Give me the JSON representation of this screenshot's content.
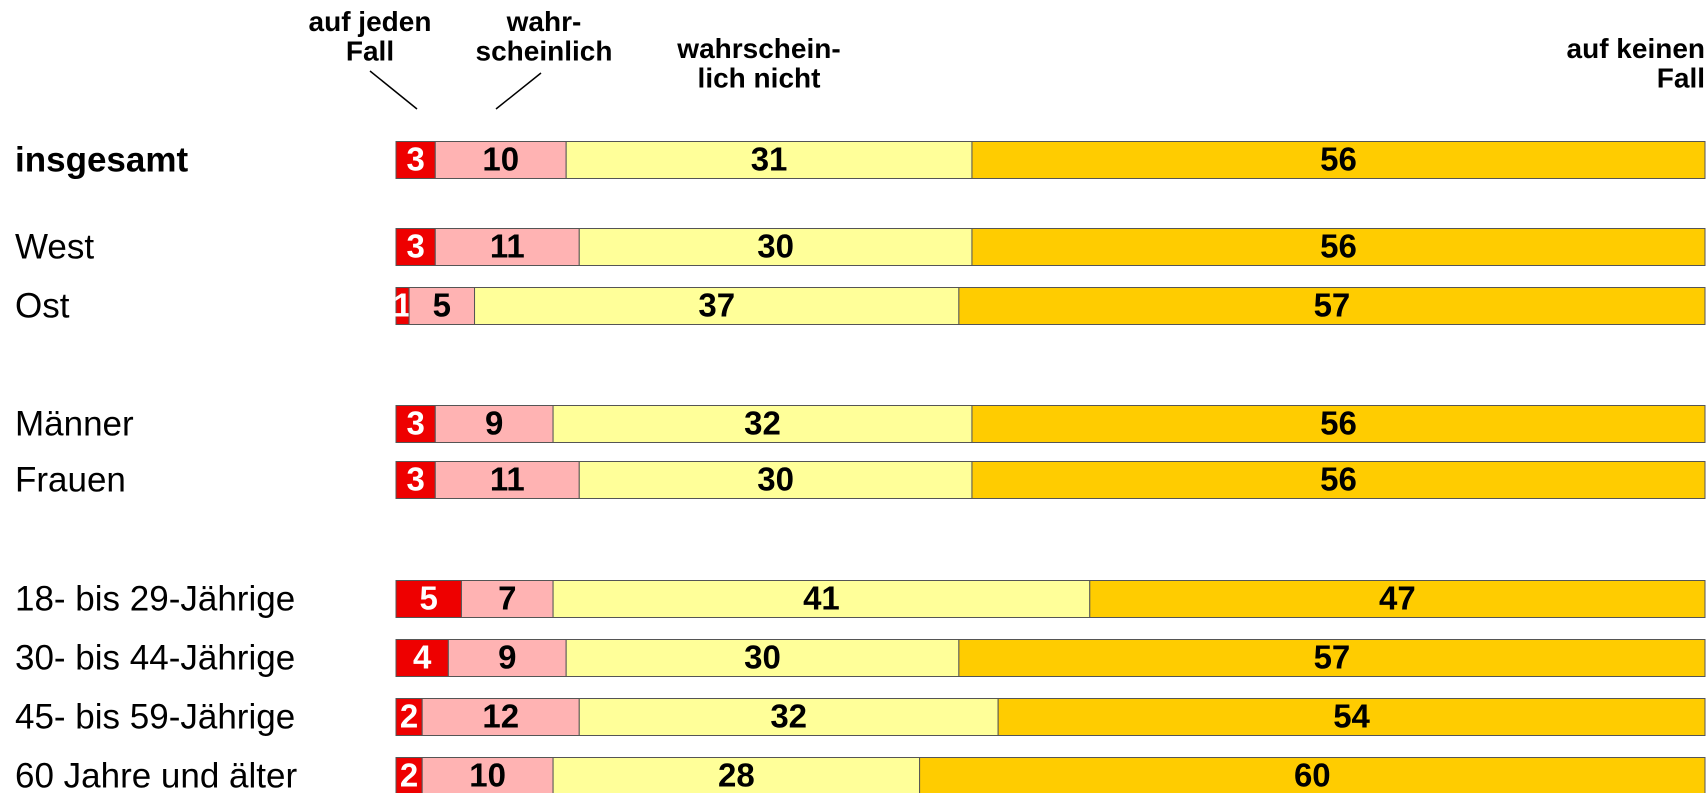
{
  "chart_data": {
    "type": "stacked-bar-horizontal",
    "categories": [
      "insgesamt",
      "West",
      "Ost",
      "Männer",
      "Frauen",
      "18- bis 29-Jährige",
      "30- bis 44-Jährige",
      "45- bis 59-Jährige",
      "60 Jahre und älter"
    ],
    "series": [
      {
        "name": "auf jeden\nFall",
        "color": "#ee0000",
        "label_color": "#ffffff",
        "values": [
          3,
          3,
          1,
          3,
          3,
          5,
          4,
          2,
          2
        ]
      },
      {
        "name": "wahr-\nscheinlich",
        "color": "#ffb3b3",
        "label_color": "#000000",
        "values": [
          10,
          11,
          5,
          9,
          11,
          7,
          9,
          12,
          10
        ]
      },
      {
        "name": "wahrschein-\nlich nicht",
        "color": "#ffff99",
        "label_color": "#000000",
        "values": [
          31,
          30,
          37,
          32,
          30,
          41,
          30,
          32,
          28
        ]
      },
      {
        "name": "auf keinen\nFall",
        "color": "#ffcc00",
        "label_color": "#000000",
        "values": [
          56,
          56,
          57,
          56,
          56,
          47,
          57,
          54,
          60
        ]
      }
    ]
  }
}
